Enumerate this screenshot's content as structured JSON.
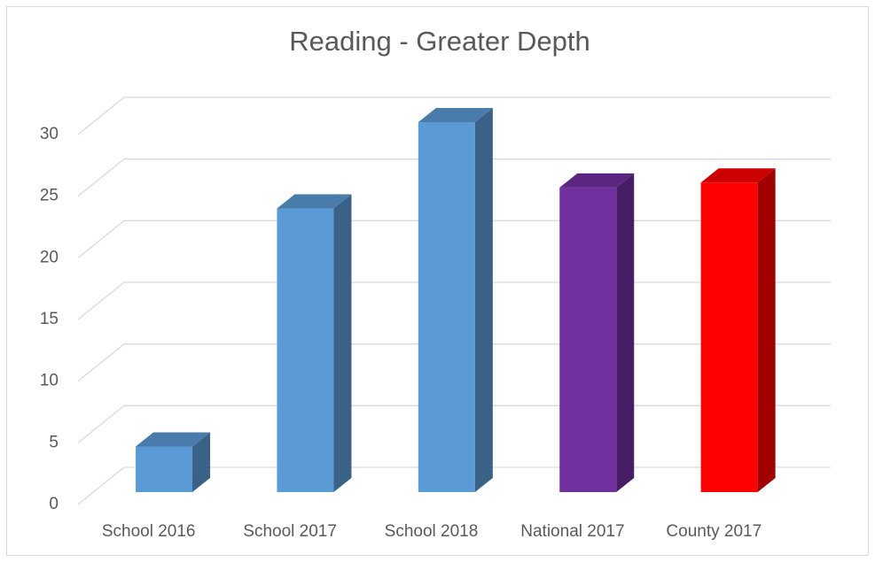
{
  "chart_data": {
    "type": "bar3d",
    "title": "Reading - Greater Depth",
    "categories": [
      "School 2016",
      "School 2017",
      "School 2018",
      "National 2017",
      "County 2017"
    ],
    "values": [
      3.7,
      23,
      30,
      24.7,
      25.1
    ],
    "colors": [
      "#5b9bd5",
      "#5b9bd5",
      "#5b9bd5",
      "#7030a0",
      "#ff0000"
    ],
    "ylim": [
      0,
      30
    ],
    "yticks": [
      0,
      5,
      10,
      15,
      20,
      25,
      30
    ],
    "grid": true
  }
}
